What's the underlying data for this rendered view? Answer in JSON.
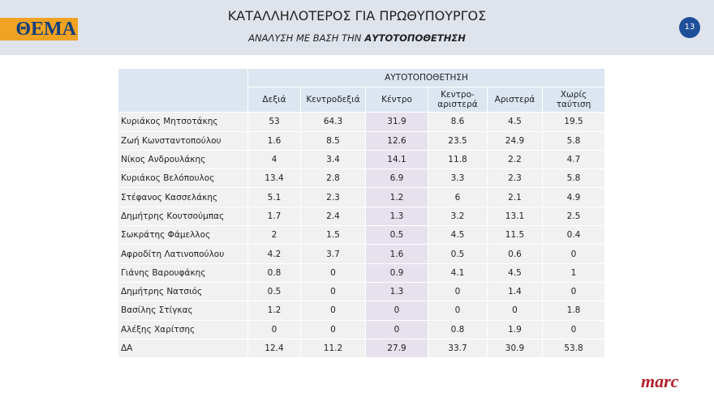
{
  "header": {
    "logo": "ΘΕΜΑ",
    "title": "ΚΑΤΑΛΛΗΛΟΤΕΡΟΣ ΓΙΑ ΠΡΩΘΥΠΟΥΡΓΟΣ",
    "subtitle_prefix": "ΑΝΑΛΥΣΗ ΜΕ ΒΑΣΗ ΤΗΝ",
    "subtitle_emphasis": "ΑΥΤΟΤΟΠΟΘΕΤΗΣΗ",
    "page_number": "13"
  },
  "table": {
    "group_header": "ΑΥΤΟΤΟΠΟΘΕΤΗΣΗ",
    "columns": [
      "Δεξιά",
      "Κεντροδεξιά",
      "Κέντρο",
      "Κεντρο-αριστερά",
      "Αριστερά",
      "Χωρίς ταύτιση"
    ],
    "rows": [
      [
        "Κυριάκος Μητσοτάκης",
        53,
        64.3,
        31.9,
        8.6,
        4.5,
        19.5
      ],
      [
        "Ζωή Κωνσταντοπούλου",
        1.6,
        8.5,
        12.6,
        23.5,
        24.9,
        5.8
      ],
      [
        "Νίκος Ανδρουλάκης",
        4,
        3.4,
        14.1,
        11.8,
        2.2,
        4.7
      ],
      [
        "Κυριάκος Βελόπουλος",
        13.4,
        2.8,
        6.9,
        3.3,
        2.3,
        5.8
      ],
      [
        "Στέφανος Κασσελάκης",
        5.1,
        2.3,
        1.2,
        6,
        2.1,
        4.9
      ],
      [
        "Δημήτρης Κουτσούμπας",
        1.7,
        2.4,
        1.3,
        3.2,
        13.1,
        2.5
      ],
      [
        "Σωκράτης Φάμελλος",
        2,
        1.5,
        0.5,
        4.5,
        11.5,
        0.4
      ],
      [
        "Αφροδίτη Λατινοπούλου",
        4.2,
        3.7,
        1.6,
        0.5,
        0.6,
        0
      ],
      [
        "Γιάνης Βαρουφάκης",
        0.8,
        0,
        0.9,
        4.1,
        4.5,
        1
      ],
      [
        "Δημήτρης Νατσιός",
        0.5,
        0,
        1.3,
        0,
        1.4,
        0
      ],
      [
        "Βασίλης Στίγκας",
        1.2,
        0,
        0,
        0,
        0,
        1.8
      ],
      [
        "Αλέξης Χαρίτσης",
        0,
        0,
        0,
        0.8,
        1.9,
        0
      ],
      [
        "ΔΑ",
        12.4,
        11.2,
        27.9,
        33.7,
        30.9,
        53.8
      ]
    ]
  },
  "footer": {
    "brand": "marc"
  }
}
